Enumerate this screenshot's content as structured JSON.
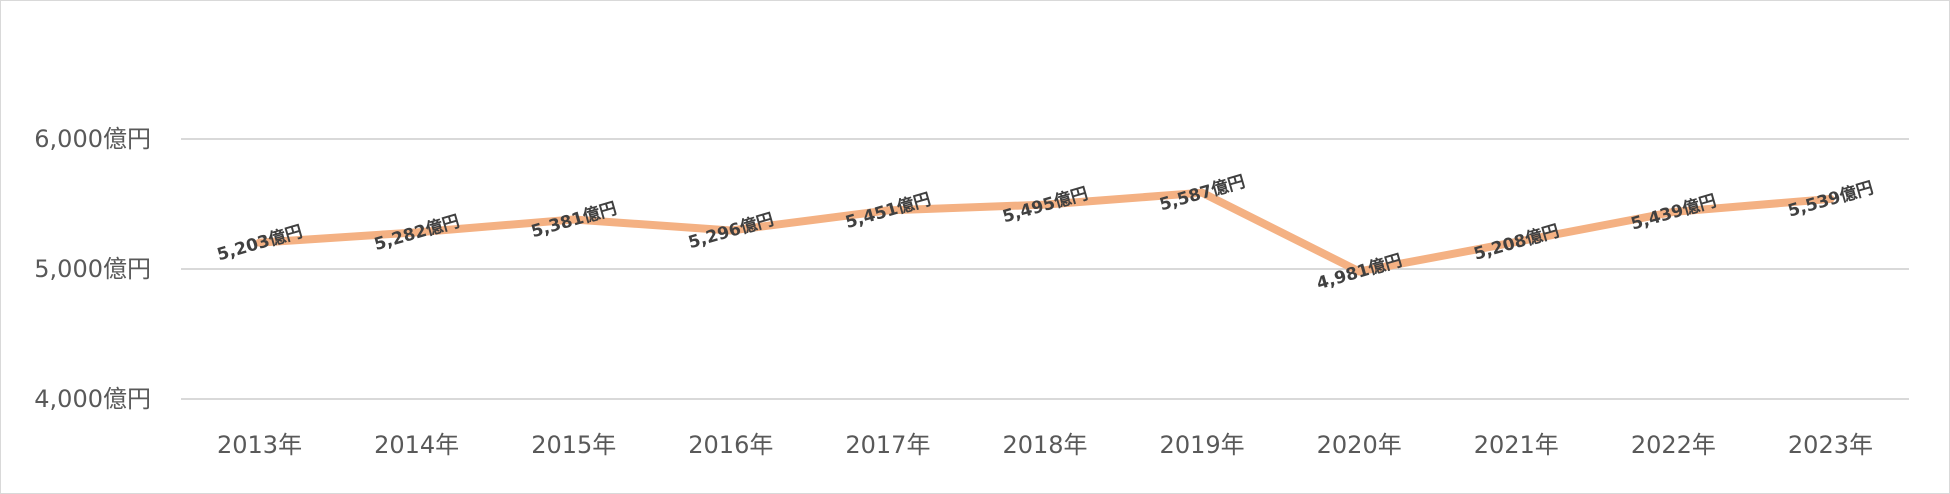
{
  "chart_data": {
    "type": "line",
    "title": "",
    "xlabel": "",
    "ylabel": "",
    "categories": [
      "2013年",
      "2014年",
      "2015年",
      "2016年",
      "2017年",
      "2018年",
      "2019年",
      "2020年",
      "2021年",
      "2022年",
      "2023年"
    ],
    "series": [
      {
        "values": [
          5203,
          5282,
          5381,
          5296,
          5451,
          5495,
          5587,
          4981,
          5208,
          5439,
          5539
        ],
        "data_labels": [
          "5,203億円",
          "5,282億円",
          "5,381億円",
          "5,296億円",
          "5,451億円",
          "5,495億円",
          "5,587億円",
          "4,981億円",
          "5,208億円",
          "5,439億円",
          "5,539億円"
        ],
        "color": "#f4b183"
      }
    ],
    "ylim": [
      4000,
      6000
    ],
    "yticks": [
      4000,
      5000,
      6000
    ],
    "ytick_labels": [
      "4,000億円",
      "5,000億円",
      "6,000億円"
    ],
    "grid": true,
    "legend": "none"
  }
}
